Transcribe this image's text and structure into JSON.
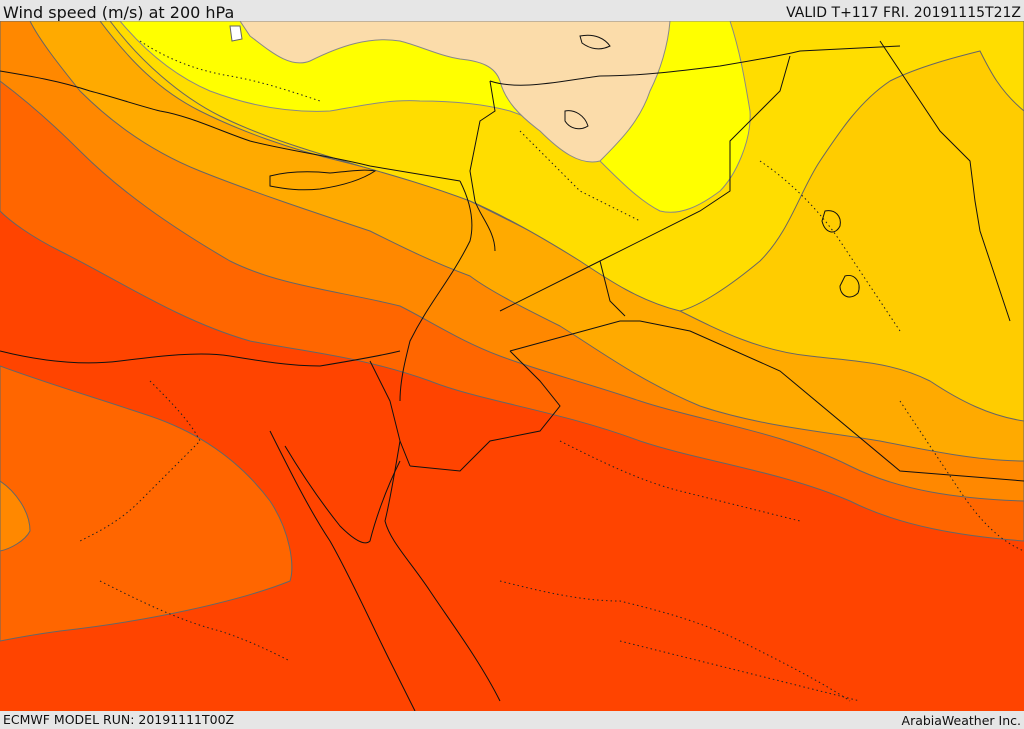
{
  "header": {
    "title": "Wind speed (m/s) at 200 hPa",
    "valid": "VALID T+117 FRI. 20191115T21Z"
  },
  "footer": {
    "model_run": "ECMWF MODEL RUN: 20191111T00Z",
    "credit": "ArabiaWeather Inc."
  },
  "palette": {
    "lightest": "#fbdcaa",
    "yellow": "#ffff00",
    "yellow_orange": "#ffdd00",
    "light_orange": "#ffcc00",
    "orange": "#ffaa00",
    "dark_orange": "#ff8800",
    "red_orange": "#ff6600",
    "red": "#ff4400",
    "deep_red": "#ff2200"
  }
}
